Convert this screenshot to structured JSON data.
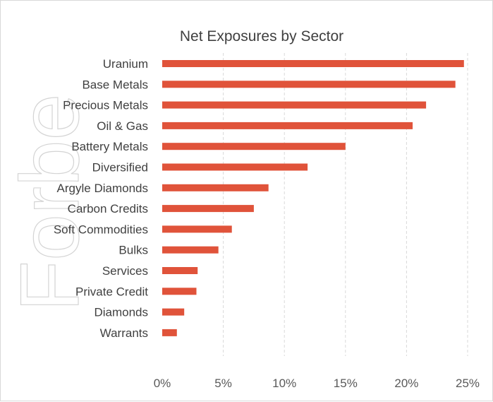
{
  "chart_data": {
    "type": "bar",
    "orientation": "horizontal",
    "title": "Net Exposures by Sector",
    "categories": [
      "Uranium",
      "Base Metals",
      "Precious Metals",
      "Oil & Gas",
      "Battery Metals",
      "Diversified",
      "Argyle Diamonds",
      "Carbon Credits",
      "Soft Commodities",
      "Bulks",
      "Services",
      "Private Credit",
      "Diamonds",
      "Warrants"
    ],
    "values": [
      24.7,
      24.0,
      21.6,
      20.5,
      15.0,
      11.9,
      8.7,
      7.5,
      5.7,
      4.6,
      2.9,
      2.8,
      1.8,
      1.2
    ],
    "xlim": [
      0,
      25
    ],
    "xticks": [
      "0%",
      "5%",
      "10%",
      "15%",
      "20%",
      "25%"
    ],
    "xtick_values": [
      0,
      5,
      10,
      15,
      20,
      25
    ],
    "xlabel": "",
    "ylabel": "",
    "grid": "vertical dashed",
    "legend": "none",
    "bar_color": "#E0533A"
  },
  "watermark": {
    "text": "Forbe"
  }
}
